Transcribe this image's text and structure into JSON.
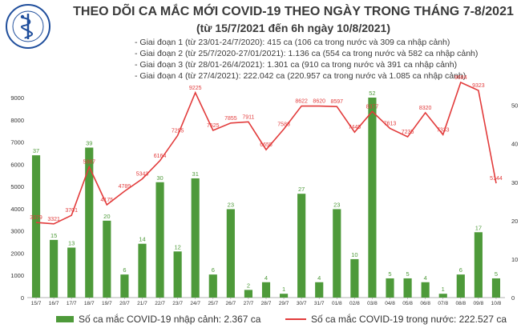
{
  "header": {
    "title": "THEO DÕI CA MẮC MỚI COVID-19 THEO NGÀY TRONG THÁNG 7-8/2021",
    "subtitle": "(từ 15/7/2021 đến 6h ngày 10/8/2021)",
    "notes": [
      "- Giai đoạn 1 (từ 23/01-24/7/2020): 415 ca (106 ca trong nước và 309 ca nhập cảnh)",
      "- Giai đoạn 2 (từ 25/7/2020-27/01/2021): 1.136 ca (554 ca trong nước và 582 ca nhập cảnh)",
      "- Giai đoạn 3 (từ 28/01-26/4/2021): 1.301 ca (910 ca trong nước và 391 ca nhập cảnh)",
      "- Giai đoạn 4 (từ 27/4/2021): 222.042 ca (220.957 ca trong nước và 1.085 ca nhập cảnh)"
    ],
    "logo_text_top": "BỘ Y TẾ",
    "logo_text_bottom": "MINISTRY OF HEALTH"
  },
  "colors": {
    "bar": "#4e9a3a",
    "line": "#e23b3b",
    "title": "#3a3a3a",
    "label": "#333333",
    "logo": "#1f4e9c"
  },
  "chart_data": {
    "type": "bar+line",
    "title": "THEO DÕI CA MẮC MỚI COVID-19 THEO NGÀY TRONG THÁNG 7-8/2021",
    "categories": [
      "15/7",
      "16/7",
      "17/7",
      "18/7",
      "19/7",
      "20/7",
      "21/7",
      "22/7",
      "23/7",
      "24/7",
      "25/7",
      "26/7",
      "27/7",
      "28/7",
      "29/7",
      "30/7",
      "31/7",
      "01/8",
      "02/8",
      "03/8",
      "04/8",
      "05/8",
      "06/8",
      "07/8",
      "08/8",
      "09/8",
      "10/8"
    ],
    "series": [
      {
        "name": "Số ca mắc COVID-19 nhập cảnh: 2.367 ca",
        "kind": "bar",
        "axis": "right",
        "values": [
          37,
          15,
          13,
          39,
          20,
          6,
          14,
          30,
          12,
          31,
          6,
          23,
          2,
          4,
          1,
          27,
          4,
          23,
          10,
          52,
          5,
          5,
          4,
          1,
          6,
          17,
          5
        ]
      },
      {
        "name": "Số ca mắc COVID-19 trong nước: 222.527 ca",
        "kind": "line",
        "axis": "left",
        "values": [
          3379,
          3321,
          3701,
          5887,
          4175,
          4789,
          5343,
          6164,
          7295,
          9225,
          7525,
          7855,
          7911,
          6655,
          7583,
          8622,
          8620,
          8597,
          7445,
          8377,
          7613,
          7235,
          8320,
          7333,
          9684,
          9323,
          5144
        ]
      }
    ],
    "y_left": {
      "ylim": [
        0,
        9000
      ],
      "ticks": [
        0,
        1000,
        2000,
        3000,
        4000,
        5000,
        6000,
        7000,
        8000,
        9000
      ]
    },
    "y_right": {
      "ylim": [
        0,
        52
      ],
      "ticks": [
        0,
        10,
        20,
        30,
        40,
        50
      ]
    },
    "grid": false,
    "legend_position": "bottom"
  }
}
